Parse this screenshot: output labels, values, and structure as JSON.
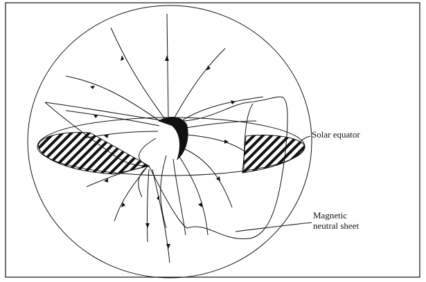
{
  "annotations": [
    {
      "lines": [
        "Solar equator"
      ]
    },
    {
      "lines": [
        "Magnetic",
        "neutral sheet"
      ]
    }
  ]
}
